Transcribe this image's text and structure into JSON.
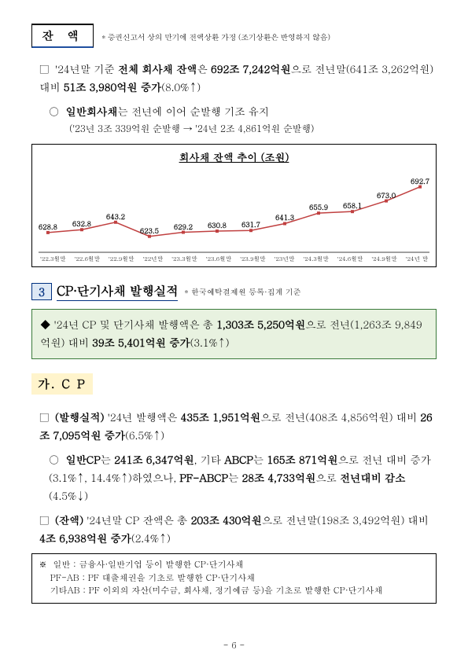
{
  "balance": {
    "title": "잔 액",
    "note": "* 증권신고서 상의 만기에 전액상환 가정 (조기상환은 반영하지 않음)",
    "p1_pre": "'24년말 기준 ",
    "p1_b1": "전체 회사채 잔액",
    "p1_mid": "은 ",
    "p1_b2": "692조 7,242억원",
    "p1_post": "으로 전년말(641조 3,262억원) 대비 ",
    "p1_b3": "51조 3,980억원 증가",
    "p1_tail": "(8.0%↑)",
    "p2_b1": "일반회사채",
    "p2_text": "는 전년에 이어 순발행 기조 유지",
    "p2_sub": "('23년 3조 339억원 순발행 → '24년 2조 4,861억원 순발행)"
  },
  "chart": {
    "title": "회사채 잔액 추이 (조원)",
    "series_color": "#c04040",
    "x_labels": [
      "'22.3월말",
      "'22.6월말",
      "'22.9월말",
      "'22년말",
      "'23.3월말",
      "'23.6월말",
      "'23.9월말",
      "'23년말",
      "'24.3월말",
      "'24.6월말",
      "'24.9월말",
      "'24년 말"
    ],
    "values": [
      628.8,
      632.8,
      643.2,
      623.5,
      629.2,
      630.8,
      631.7,
      641.3,
      655.9,
      658.1,
      673.0,
      692.7
    ],
    "ymin": 610,
    "ymax": 700
  },
  "section3": {
    "num": "3",
    "title": "CP·단기사채 발행실적",
    "note": "* 한국예탁결제원 등록·집계 기준",
    "hl_pre": "◆ '24년 CP 및 단기사채 발행액은 총 ",
    "hl_b1": "1,303조 5,250억원",
    "hl_mid": "으로 전년(1,263조 9,849억원) 대비 ",
    "hl_b2": "39조 5,401억원 증가",
    "hl_tail": "(3.1%↑)"
  },
  "cp": {
    "subsec": "가. C P",
    "p1_lead": "(발행실적) ",
    "p1_a": "'24년 발행액은 ",
    "p1_b1": "435조 1,951억원",
    "p1_mid": "으로 전년(408조 4,856억원) 대비 ",
    "p1_b2": "26조 7,095억원 증가",
    "p1_tail": "(6.5%↑)",
    "p2_a": "일반CP",
    "p2_a2": "는 ",
    "p2_b1": "241조 6,347억원",
    "p2_mid1": ", 기타 ",
    "p2_b2": "ABCP",
    "p2_mid2": "는 ",
    "p2_b3": "165조  871억원",
    "p2_mid3": "으로 전년 대비 증가(3.1%↑, 14.4%↑)하였으나, ",
    "p2_b4": "PF-ABCP",
    "p2_mid4": "는 ",
    "p2_b5": "28조 4,733억원",
    "p2_mid5": "으로 ",
    "p2_b6": "전년대비 감소",
    "p2_tail": "(4.5%↓)",
    "p3_lead": "(잔액) ",
    "p3_a": "'24년말 CP 잔액은 총 ",
    "p3_b1": "203조 430억원",
    "p3_mid": "으로 전년말(198조 3,492억원) 대비 ",
    "p3_b2": "4조 6,938억원 증가",
    "p3_tail": "(2.4%↑)"
  },
  "defs": {
    "l1": "※  일반 : 금융사·일반기업 등이 발행한 CP·단기사채",
    "l2": "    PF-AB : PF 대출채권을 기초로 발행한 CP·단기사채",
    "l3": "    기타AB : PF 이외의 자산(미수금, 회사채, 정기예금 등)을 기초로 발행한 CP·단기사채"
  },
  "page": "- 6 -"
}
